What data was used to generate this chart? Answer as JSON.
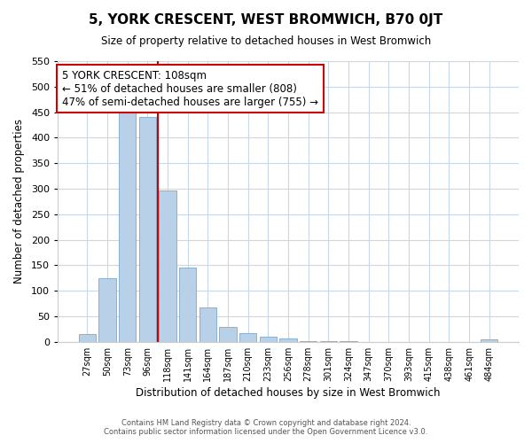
{
  "title": "5, YORK CRESCENT, WEST BROMWICH, B70 0JT",
  "subtitle": "Size of property relative to detached houses in West Bromwich",
  "xlabel": "Distribution of detached houses by size in West Bromwich",
  "ylabel": "Number of detached properties",
  "bar_color": "#b8d0e8",
  "bar_edge_color": "#7aaad0",
  "tick_labels": [
    "27sqm",
    "50sqm",
    "73sqm",
    "96sqm",
    "118sqm",
    "141sqm",
    "164sqm",
    "187sqm",
    "210sqm",
    "233sqm",
    "256sqm",
    "278sqm",
    "301sqm",
    "324sqm",
    "347sqm",
    "370sqm",
    "393sqm",
    "415sqm",
    "438sqm",
    "461sqm",
    "484sqm"
  ],
  "bar_heights": [
    15,
    125,
    450,
    440,
    297,
    146,
    68,
    30,
    17,
    10,
    6,
    2,
    1,
    1,
    0,
    0,
    0,
    0,
    0,
    0,
    5
  ],
  "ylim": [
    0,
    550
  ],
  "yticks": [
    0,
    50,
    100,
    150,
    200,
    250,
    300,
    350,
    400,
    450,
    500,
    550
  ],
  "property_line_color": "#cc0000",
  "annotation_title": "5 YORK CRESCENT: 108sqm",
  "annotation_line1": "← 51% of detached houses are smaller (808)",
  "annotation_line2": "47% of semi-detached houses are larger (755) →",
  "annotation_box_color": "#ffffff",
  "annotation_box_edge": "#cc0000",
  "footer1": "Contains HM Land Registry data © Crown copyright and database right 2024.",
  "footer2": "Contains public sector information licensed under the Open Government Licence v3.0.",
  "background_color": "#ffffff",
  "grid_color": "#c8d8e8"
}
